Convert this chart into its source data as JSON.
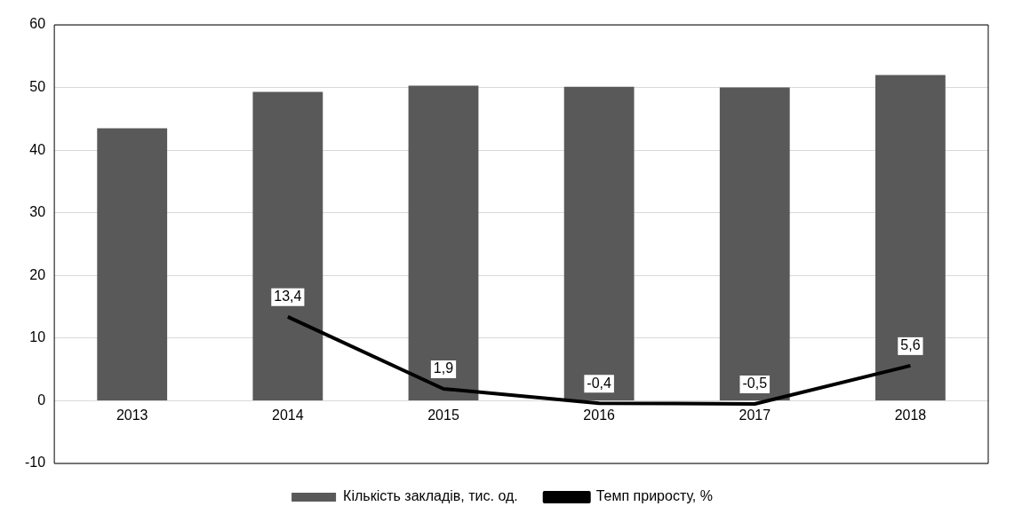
{
  "chart_data": {
    "type": "bar",
    "categories": [
      "2013",
      "2014",
      "2015",
      "2016",
      "2017",
      "2018"
    ],
    "series": [
      {
        "name": "Кількість закладів, тис. од.",
        "color": "#595959",
        "values": [
          43.5,
          49.3,
          50.3,
          50.1,
          50.0,
          52.0
        ]
      },
      {
        "name": "Темп приросту, %",
        "type": "line",
        "color": "#000000",
        "values": [
          null,
          13.4,
          1.9,
          -0.4,
          -0.5,
          5.6
        ],
        "value_labels": [
          null,
          "13,4",
          "1,9",
          "-0,4",
          "-0,5",
          "5,6"
        ]
      }
    ],
    "ylim": [
      -10,
      60
    ],
    "yticks": [
      -10,
      0,
      10,
      20,
      30,
      40,
      50,
      60
    ],
    "grid": "y",
    "legend": "bottom",
    "marker": "none"
  }
}
